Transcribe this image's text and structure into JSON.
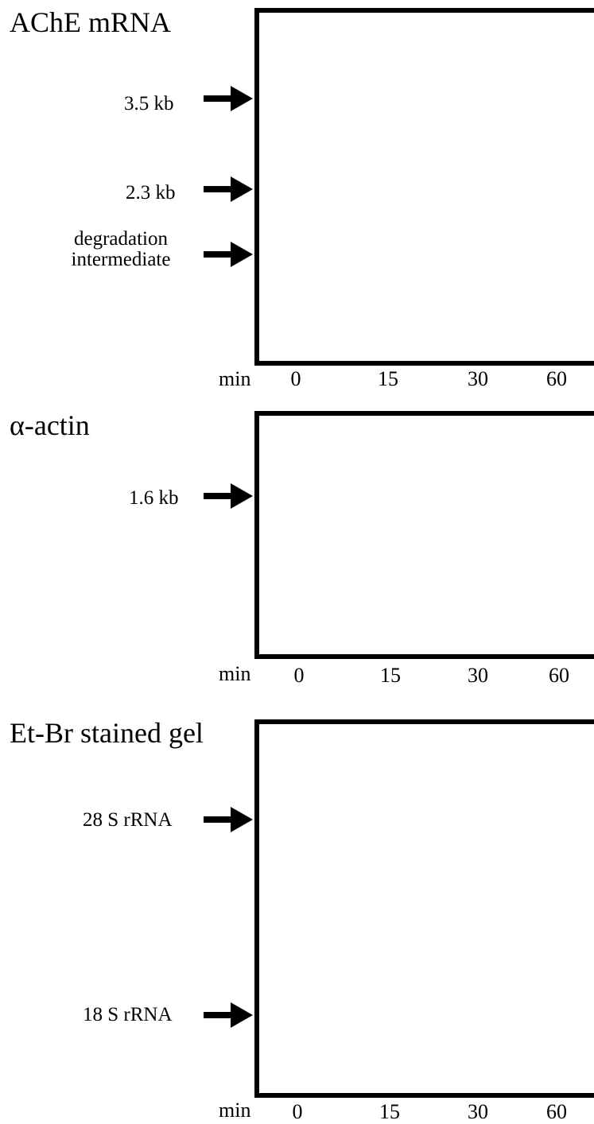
{
  "panels": [
    {
      "title": "AChE mRNA",
      "markers": [
        {
          "label": "3.5 kb"
        },
        {
          "label": "2.3 kb"
        },
        {
          "label_line1": "degradation",
          "label_line2": "intermediate"
        }
      ],
      "axis": {
        "unit": "min",
        "ticks": [
          "0",
          "15",
          "30",
          "60"
        ]
      }
    },
    {
      "title": "α-actin",
      "markers": [
        {
          "label": "1.6 kb"
        }
      ],
      "axis": {
        "unit": "min",
        "ticks": [
          "0",
          "15",
          "30",
          "60"
        ]
      }
    },
    {
      "title": "Et-Br stained gel",
      "markers": [
        {
          "label": "28 S rRNA"
        },
        {
          "label": "18 S rRNA"
        }
      ],
      "axis": {
        "unit": "min",
        "ticks": [
          "0",
          "15",
          "30",
          "60"
        ]
      }
    }
  ]
}
